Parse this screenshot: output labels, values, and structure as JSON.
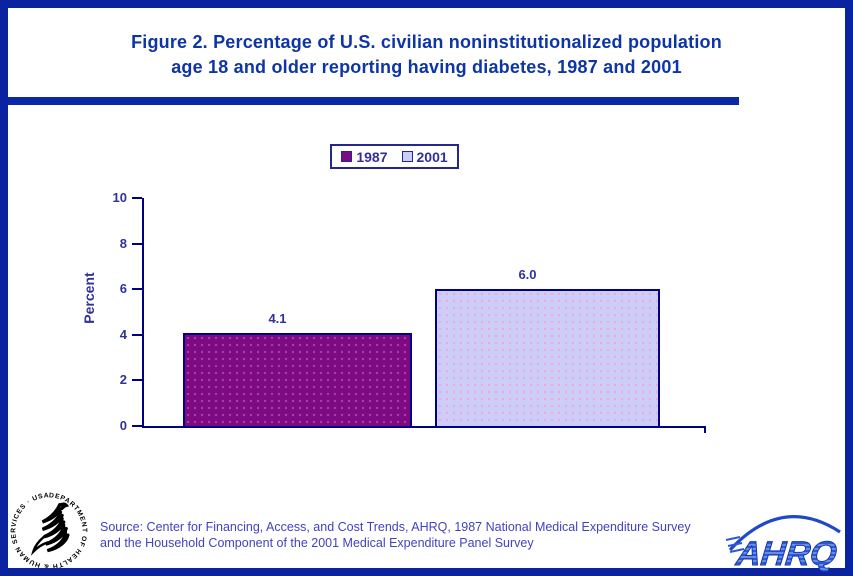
{
  "header": {
    "title_line1": "Figure 2. Percentage of U.S. civilian noninstitutionalized population",
    "title_line2": "age 18 and older reporting having diabetes, 1987 and 2001"
  },
  "legend": [
    {
      "label": "1987",
      "color": "#7D0A80"
    },
    {
      "label": "2001",
      "color": "#CDCDFA"
    }
  ],
  "chart_data": {
    "type": "bar",
    "categories": [
      "1987",
      "2001"
    ],
    "values": [
      4.1,
      6.0
    ],
    "data_labels": [
      "4.1",
      "6.0"
    ],
    "title": "Percentage of U.S. civilian noninstitutionalized population age 18 and older reporting having diabetes, 1987 and 2001",
    "xlabel": "",
    "ylabel": "Percent",
    "ylim": [
      0,
      10
    ],
    "yticks": [
      0,
      2,
      4,
      6,
      8,
      10
    ],
    "grid": false,
    "legend_position": "top-center",
    "bar_colors": [
      "#7D0A80",
      "#CDCDFA"
    ],
    "bar_border_color": "#00008B"
  },
  "source": {
    "line1": "Source: Center for Financing, Access, and Cost Trends, AHRQ, 1987 National Medical Expenditure Survey",
    "line2": "and the Household Component of the 2001 Medical Expenditure Panel Survey"
  },
  "logos": {
    "hhs_ring_text": "DEPARTMENT OF HEALTH & HUMAN SERVICES · USA ·",
    "ahrq_text": "AHRQ"
  },
  "colors": {
    "frame": "#0A23A0",
    "divider": "#0A28A8",
    "title_text": "#0D35A6",
    "axis_text": "#31319B",
    "axis_line": "#000082",
    "source_text": "#4242C2",
    "ahrq_blue": "#2B59D6"
  }
}
